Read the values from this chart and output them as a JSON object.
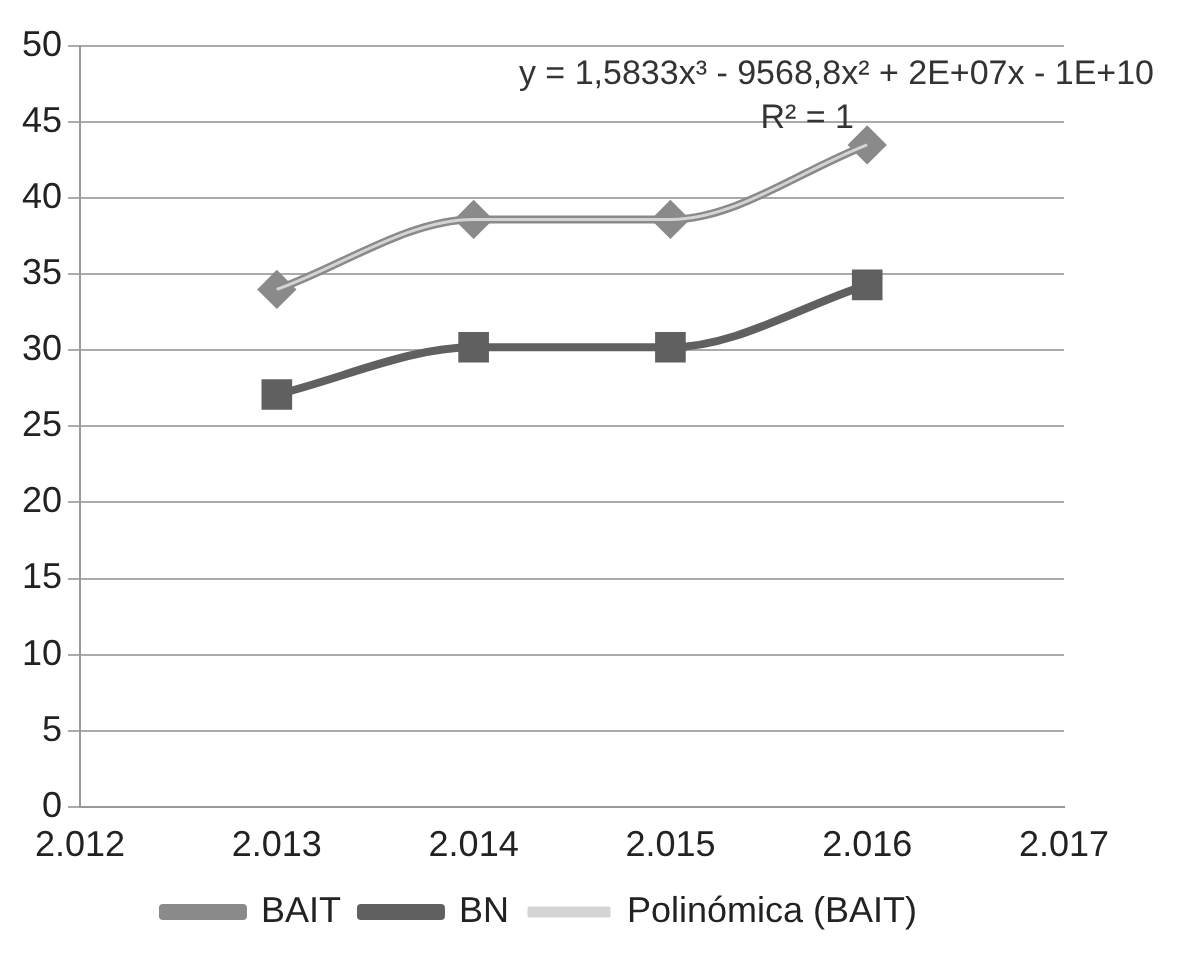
{
  "chart_data": {
    "type": "line",
    "categories": [
      "2.012",
      "2.013",
      "2.014",
      "2.015",
      "2.016",
      "2.017"
    ],
    "series": [
      {
        "name": "BAIT",
        "color": "#8a8a8a",
        "values": [
          null,
          34,
          38.6,
          38.6,
          43.5,
          null
        ],
        "marker": "diamond"
      },
      {
        "name": "BN",
        "color": "#606060",
        "values": [
          null,
          27.1,
          30.2,
          30.2,
          34.3,
          null
        ],
        "marker": "square"
      },
      {
        "name": "Polinómica (BAIT)",
        "type": "line",
        "color": "#d4d4d4",
        "values": [
          null,
          34,
          38.6,
          38.6,
          43.5,
          null
        ],
        "marker": "none"
      }
    ],
    "ylim": [
      0,
      50
    ],
    "yticks": [
      0,
      5,
      10,
      15,
      20,
      25,
      30,
      35,
      40,
      45,
      50
    ],
    "grid": "y",
    "legend": "bottom",
    "annotations": [
      "y = 1,5833x³ - 9568,8x² + 2E+07x - 1E+10",
      "R² = 1"
    ]
  }
}
